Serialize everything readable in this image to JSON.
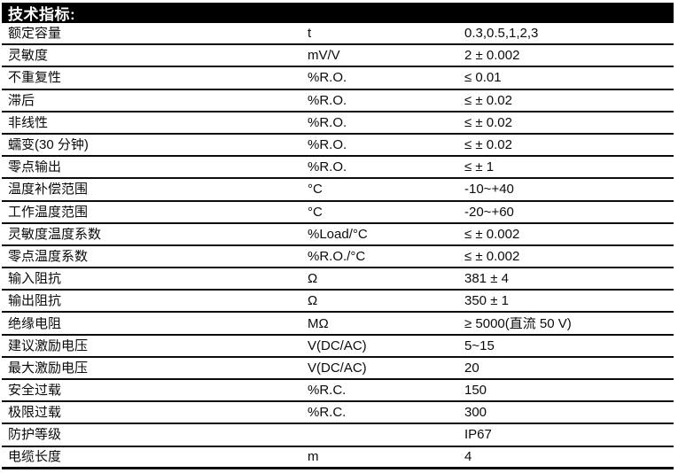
{
  "header": {
    "title": "技术指标:"
  },
  "table": {
    "rows": [
      {
        "label": "额定容量",
        "unit": "t",
        "value": "0.3,0.5,1,2,3"
      },
      {
        "label": "灵敏度",
        "unit": "mV/V",
        "value": "2 ± 0.002"
      },
      {
        "label": "不重复性",
        "unit": "%R.O.",
        "value": "≤ 0.01"
      },
      {
        "label": "滞后",
        "unit": "%R.O.",
        "value": "≤ ± 0.02"
      },
      {
        "label": "非线性",
        "unit": "%R.O.",
        "value": "≤ ± 0.02"
      },
      {
        "label": "蠕变(30 分钟)",
        "unit": "%R.O.",
        "value": "≤ ± 0.02"
      },
      {
        "label": "零点输出",
        "unit": "%R.O.",
        "value": "≤ ± 1"
      },
      {
        "label": "温度补偿范围",
        "unit": "°C",
        "value": "-10~+40"
      },
      {
        "label": "工作温度范围",
        "unit": "°C",
        "value": "-20~+60"
      },
      {
        "label": "灵敏度温度系数",
        "unit": "%Load/°C",
        "value": "≤ ± 0.002"
      },
      {
        "label": "零点温度系数",
        "unit": "%R.O./°C",
        "value": "≤ ± 0.002"
      },
      {
        "label": "输入阻抗",
        "unit": "Ω",
        "value": "381 ± 4"
      },
      {
        "label": "输出阻抗",
        "unit": "Ω",
        "value": "350 ± 1"
      },
      {
        "label": "绝缘电阻",
        "unit": "MΩ",
        "value": "≥ 5000(直流 50 V)"
      },
      {
        "label": "建议激励电压",
        "unit": "V(DC/AC)",
        "value": "5~15"
      },
      {
        "label": "最大激励电压",
        "unit": "V(DC/AC)",
        "value": "20"
      },
      {
        "label": "安全过载",
        "unit": "%R.C.",
        "value": "150"
      },
      {
        "label": "极限过载",
        "unit": "%R.C.",
        "value": "300"
      },
      {
        "label": "防护等级",
        "unit": "",
        "value": "IP67"
      },
      {
        "label": "电缆长度",
        "unit": "m",
        "value": "4"
      }
    ]
  },
  "colors": {
    "background": "#ffffff",
    "text": "#0b0b0b",
    "header_bg": "#000000",
    "header_text": "#ffffff"
  }
}
